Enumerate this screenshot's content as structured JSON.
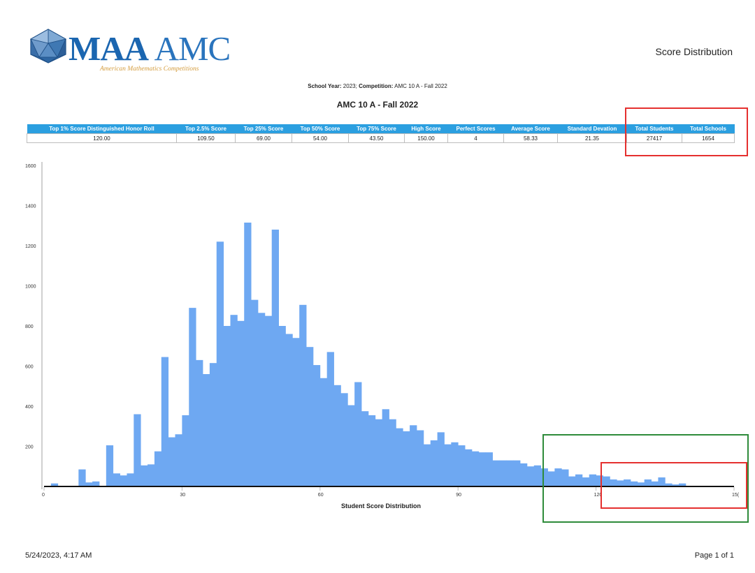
{
  "header": {
    "logo_name_bold": "MAA",
    "logo_name_rest": "AMC",
    "logo_tagline": "American Mathematics Competitions",
    "report_title": "Score Distribution"
  },
  "filters": {
    "year_label": "School Year:",
    "year_value": "2023;",
    "competition_label": "Competition:",
    "competition_value": "AMC 10 A - Fall 2022"
  },
  "competition_title": "AMC 10 A - Fall 2022",
  "stats_table": {
    "headers": [
      "Top 1% Score Distinguished Honor Roll",
      "Top 2.5% Score",
      "Top 25% Score",
      "Top 50% Score",
      "Top 75% Score",
      "High Score",
      "Perfect Scores",
      "Average Score",
      "Standard Devation",
      "Total Students",
      "Total Schools"
    ],
    "values": [
      "120.00",
      "109.50",
      "69.00",
      "54.00",
      "43.50",
      "150.00",
      "4",
      "58.33",
      "21.35",
      "27417",
      "1654"
    ]
  },
  "chart_data": {
    "type": "bar",
    "title": "",
    "xlabel": "Student Score Distribution",
    "ylabel": "",
    "xlim": [
      0,
      150
    ],
    "ylim": [
      0,
      1600
    ],
    "x_ticks": [
      0,
      30,
      60,
      90,
      120,
      "15("
    ],
    "y_ticks": [
      200,
      400,
      600,
      800,
      1000,
      1200,
      1400,
      1600
    ],
    "grid": false,
    "bar_color": "#6ea8f2",
    "bin_width": 1.5,
    "bins": [
      {
        "x": 1.5,
        "y": 15
      },
      {
        "x": 7.5,
        "y": 85
      },
      {
        "x": 9.0,
        "y": 20
      },
      {
        "x": 10.5,
        "y": 25
      },
      {
        "x": 13.5,
        "y": 205
      },
      {
        "x": 15.0,
        "y": 65
      },
      {
        "x": 16.5,
        "y": 55
      },
      {
        "x": 18.0,
        "y": 65
      },
      {
        "x": 19.5,
        "y": 360
      },
      {
        "x": 21.0,
        "y": 105
      },
      {
        "x": 22.5,
        "y": 110
      },
      {
        "x": 24.0,
        "y": 175
      },
      {
        "x": 25.5,
        "y": 645
      },
      {
        "x": 27.0,
        "y": 245
      },
      {
        "x": 28.5,
        "y": 260
      },
      {
        "x": 30.0,
        "y": 355
      },
      {
        "x": 31.5,
        "y": 890
      },
      {
        "x": 33.0,
        "y": 630
      },
      {
        "x": 34.5,
        "y": 560
      },
      {
        "x": 36.0,
        "y": 615
      },
      {
        "x": 37.5,
        "y": 1220
      },
      {
        "x": 39.0,
        "y": 800
      },
      {
        "x": 40.5,
        "y": 855
      },
      {
        "x": 42.0,
        "y": 825
      },
      {
        "x": 43.5,
        "y": 1315
      },
      {
        "x": 45.0,
        "y": 930
      },
      {
        "x": 46.5,
        "y": 865
      },
      {
        "x": 48.0,
        "y": 850
      },
      {
        "x": 49.5,
        "y": 1280
      },
      {
        "x": 51.0,
        "y": 800
      },
      {
        "x": 52.5,
        "y": 760
      },
      {
        "x": 54.0,
        "y": 740
      },
      {
        "x": 55.5,
        "y": 905
      },
      {
        "x": 57.0,
        "y": 695
      },
      {
        "x": 58.5,
        "y": 605
      },
      {
        "x": 60.0,
        "y": 540
      },
      {
        "x": 61.5,
        "y": 670
      },
      {
        "x": 63.0,
        "y": 505
      },
      {
        "x": 64.5,
        "y": 465
      },
      {
        "x": 66.0,
        "y": 405
      },
      {
        "x": 67.5,
        "y": 520
      },
      {
        "x": 69.0,
        "y": 375
      },
      {
        "x": 70.5,
        "y": 355
      },
      {
        "x": 72.0,
        "y": 335
      },
      {
        "x": 73.5,
        "y": 385
      },
      {
        "x": 75.0,
        "y": 335
      },
      {
        "x": 76.5,
        "y": 290
      },
      {
        "x": 78.0,
        "y": 275
      },
      {
        "x": 79.5,
        "y": 305
      },
      {
        "x": 81.0,
        "y": 280
      },
      {
        "x": 82.5,
        "y": 210
      },
      {
        "x": 84.0,
        "y": 230
      },
      {
        "x": 85.5,
        "y": 270
      },
      {
        "x": 87.0,
        "y": 210
      },
      {
        "x": 88.5,
        "y": 220
      },
      {
        "x": 90.0,
        "y": 205
      },
      {
        "x": 91.5,
        "y": 185
      },
      {
        "x": 93.0,
        "y": 175
      },
      {
        "x": 94.5,
        "y": 170
      },
      {
        "x": 96.0,
        "y": 170
      },
      {
        "x": 97.5,
        "y": 130
      },
      {
        "x": 99.0,
        "y": 130
      },
      {
        "x": 100.5,
        "y": 130
      },
      {
        "x": 102.0,
        "y": 130
      },
      {
        "x": 103.5,
        "y": 115
      },
      {
        "x": 105.0,
        "y": 100
      },
      {
        "x": 106.5,
        "y": 105
      },
      {
        "x": 108.0,
        "y": 90
      },
      {
        "x": 109.5,
        "y": 75
      },
      {
        "x": 111.0,
        "y": 90
      },
      {
        "x": 112.5,
        "y": 85
      },
      {
        "x": 114.0,
        "y": 50
      },
      {
        "x": 115.5,
        "y": 60
      },
      {
        "x": 117.0,
        "y": 45
      },
      {
        "x": 118.5,
        "y": 60
      },
      {
        "x": 120.0,
        "y": 55
      },
      {
        "x": 121.5,
        "y": 50
      },
      {
        "x": 123.0,
        "y": 35
      },
      {
        "x": 124.5,
        "y": 30
      },
      {
        "x": 126.0,
        "y": 35
      },
      {
        "x": 127.5,
        "y": 25
      },
      {
        "x": 129.0,
        "y": 20
      },
      {
        "x": 130.5,
        "y": 35
      },
      {
        "x": 132.0,
        "y": 25
      },
      {
        "x": 133.5,
        "y": 45
      },
      {
        "x": 135.0,
        "y": 15
      },
      {
        "x": 136.5,
        "y": 10
      },
      {
        "x": 138.0,
        "y": 15
      }
    ]
  },
  "annotations": {
    "red_color": "#e5302f",
    "green_color": "#2e8b3a"
  },
  "footer": {
    "timestamp": "5/24/2023, 4:17 AM",
    "page": "Page 1 of 1"
  }
}
